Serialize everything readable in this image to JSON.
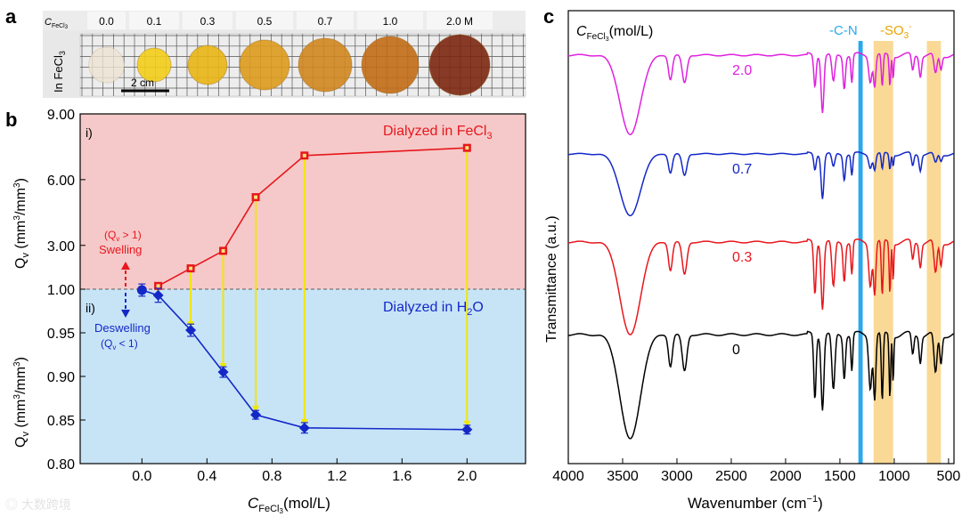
{
  "panel_labels": {
    "a": "a",
    "b": "b",
    "c": "c"
  },
  "colors": {
    "red": "#e8161c",
    "blue": "#1428c8",
    "yellow": "#f2e600",
    "magenta": "#e020e0",
    "black": "#000000",
    "pink_bg": "#f5c9c9",
    "blue_bg": "#c7e4f7",
    "cn_band": "#2aa8ee",
    "so3_band": "#f8c96a"
  },
  "panel_a": {
    "conc_symbol": "C",
    "conc_sub": "FeCl",
    "conc_sub2": "3",
    "concentrations": [
      "0.0",
      "0.1",
      "0.3",
      "0.5",
      "0.7",
      "1.0",
      "2.0 M"
    ],
    "side_label_main": "In FeCl",
    "side_label_sub": "3",
    "scale_bar": "2 cm",
    "disc_colors": [
      "#ece3d2",
      "#f2cd18",
      "#e8b413",
      "#dd9a1c",
      "#cf861e",
      "#c26b15",
      "#7b2710"
    ]
  },
  "chart_data": [
    {
      "type": "line",
      "panel": "b (upper, i)",
      "title": "",
      "region_label": "i)",
      "annotation": "Dialyzed in FeCl3",
      "ylabel": "Qv (mm3/mm3)",
      "ylim": [
        1.0,
        9.0
      ],
      "yticks": [
        "9.00",
        "6.00",
        "3.00",
        "1.00"
      ],
      "series": [
        {
          "x": [
            0.1,
            0.3,
            0.5,
            0.7,
            1.0,
            2.0
          ],
          "values": [
            1.15,
            1.95,
            2.75,
            5.2,
            7.1,
            7.45
          ]
        }
      ],
      "swelling_label": "Swelling",
      "swelling_condition": "(Qv > 1)"
    },
    {
      "type": "line",
      "panel": "b (lower, ii)",
      "region_label": "ii)",
      "annotation": "Dialyzed in H2O",
      "ylabel": "Qv (mm3/mm3)",
      "xlabel": "CFeCl3 (mol/L)",
      "ylim": [
        0.8,
        1.0
      ],
      "xlim": [
        -0.38,
        2.36
      ],
      "yticks": [
        "1.00",
        "0.95",
        "0.90",
        "0.85",
        "0.80"
      ],
      "xticks": [
        "0.0",
        "0.4",
        "0.8",
        "1.2",
        "1.6",
        "2.0"
      ],
      "series": [
        {
          "x": [
            0.0,
            0.1,
            0.3,
            0.5,
            0.7,
            1.0,
            2.0
          ],
          "values": [
            0.999,
            0.993,
            0.953,
            0.905,
            0.856,
            0.841,
            0.839
          ],
          "errors": [
            0.007,
            0.008,
            0.007,
            0.006,
            0.005,
            0.006,
            0.005
          ]
        }
      ],
      "deswelling_label": "Deswelling",
      "deswelling_condition": "(Qv < 1)"
    },
    {
      "type": "line",
      "panel": "c",
      "title": "CFeCl3 (mol/L)",
      "xlabel": "Wavenumber (cm-1)",
      "ylabel": "Transmittance (a.u.)",
      "xlim": [
        4000,
        500
      ],
      "xticks": [
        "4000",
        "3500",
        "3000",
        "2500",
        "2000",
        "1500",
        "1000",
        "500"
      ],
      "band_labels": {
        "cn": "-C-N",
        "so3": "-SO3-"
      },
      "bands": {
        "cn": [
          1330,
          1290
        ],
        "so3": [
          [
            1190,
            1010
          ],
          [
            700,
            570
          ]
        ]
      },
      "series": [
        {
          "name": "2.0",
          "color": "magenta"
        },
        {
          "name": "0.7",
          "color": "blue"
        },
        {
          "name": "0.3",
          "color": "red"
        },
        {
          "name": "0",
          "color": "black"
        }
      ]
    }
  ],
  "axis_labels": {
    "b_y_top": "Qv (mm3/mm3)",
    "b_x": "(mol/L)",
    "c_x": "Wavenumber (cm",
    "c_y": "Transmittance (a.u.)",
    "c_title": "(mol/L)"
  }
}
